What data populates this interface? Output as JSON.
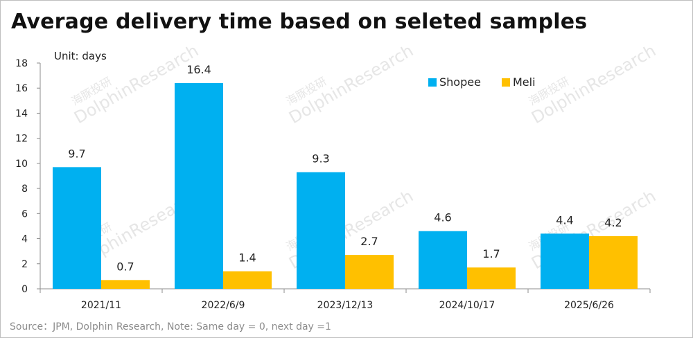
{
  "page": {
    "title": "Average delivery time based on seleted samples",
    "source": "Source：JPM, Dolphin Research, Note: Same day = 0, next day =1"
  },
  "chart_data": {
    "type": "bar",
    "unit_label": "Unit: days",
    "categories": [
      "2021/11",
      "2022/6/9",
      "2023/12/13",
      "2024/10/17",
      "2025/6/26"
    ],
    "series": [
      {
        "name": "Shopee",
        "values": [
          9.7,
          16.4,
          9.3,
          4.6,
          4.4
        ],
        "labels": [
          "9.7",
          "16.4",
          "9.3",
          "4.6",
          "4.4"
        ],
        "color": "#00b0f0"
      },
      {
        "name": "Meli",
        "values": [
          0.7,
          1.4,
          2.7,
          1.7,
          4.2
        ],
        "labels": [
          "0.7",
          "1.4",
          "2.7",
          "1.7",
          "4.2"
        ],
        "color": "#ffc000"
      }
    ],
    "ylim": [
      0,
      18
    ],
    "yticks": [
      "0",
      "2",
      "4",
      "6",
      "8",
      "10",
      "12",
      "14",
      "16",
      "18"
    ],
    "legend_position": "top-right",
    "grid": false
  },
  "watermark": {
    "text_cn": "海豚投研",
    "text_en": "DolphinResearch"
  }
}
